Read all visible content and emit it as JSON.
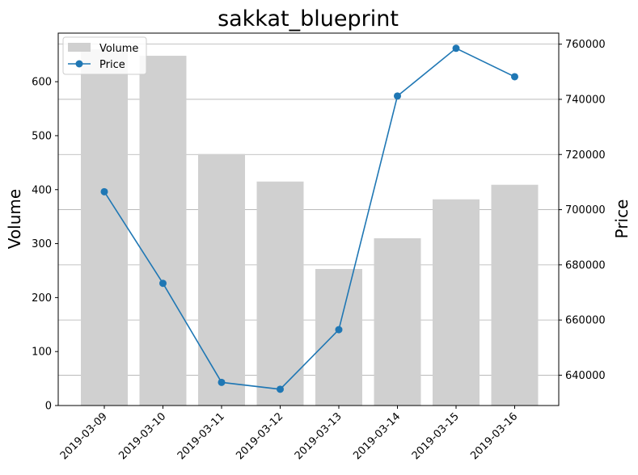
{
  "chart_data": {
    "type": "bar",
    "title": "sakkat_blueprint",
    "xlabel": "",
    "ylabel": "Volume",
    "y2label": "Price",
    "categories": [
      "2019-03-09",
      "2019-03-10",
      "2019-03-11",
      "2019-03-12",
      "2019-03-13",
      "2019-03-14",
      "2019-03-15",
      "2019-03-16"
    ],
    "series": [
      {
        "name": "Volume",
        "type": "bar",
        "axis": "left",
        "color": "#d0d0d0",
        "values": [
          660,
          648,
          466,
          415,
          253,
          310,
          382,
          409
        ]
      },
      {
        "name": "Price",
        "type": "line",
        "axis": "right",
        "color": "#1f77b4",
        "marker": "circle",
        "values": [
          706500,
          673300,
          637400,
          634900,
          656500,
          741200,
          758500,
          748200
        ]
      }
    ],
    "ylim": [
      0,
      690
    ],
    "y2lim": [
      629000,
      764000
    ],
    "yticks": [
      0,
      100,
      200,
      300,
      400,
      500,
      600
    ],
    "y2ticks": [
      640000,
      660000,
      680000,
      700000,
      720000,
      740000,
      760000
    ],
    "grid": "horizontal, right axis",
    "legend_position": "top-left"
  }
}
